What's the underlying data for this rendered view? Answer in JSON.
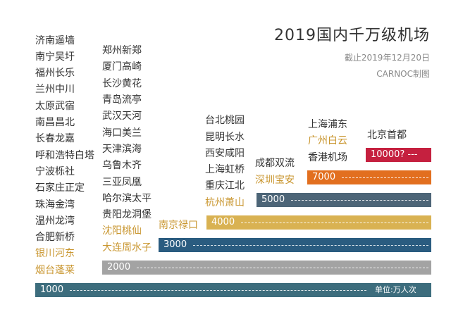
{
  "title": "2019国内千万级机场",
  "subtitle": "截止2019年12月20日",
  "credit": "CARNOC制图",
  "unit_label": "单位:万人次",
  "colors": {
    "text": "#333333",
    "new_member": "#c9962f",
    "tier_1000": "#3d6d7d",
    "tier_2000": "#a3a3a3",
    "tier_3000": "#2a5c80",
    "tier_4000": "#d9b252",
    "tier_5000": "#4d6577",
    "tier_7000": "#e26f1f",
    "tier_10000": "#c5203f"
  },
  "chart_data": {
    "type": "bar",
    "title": "2019国内千万级机场",
    "subtitle": "截止2019年12月20日",
    "unit": "万人次",
    "orientation": "stepped-horizontal",
    "tiers": [
      {
        "label": "1000",
        "threshold": 1000,
        "color": "#3d6d7d",
        "airports": [
          "济南遥墙",
          "南宁吴圩",
          "福州长乐",
          "兰州中川",
          "太原武宿",
          "南昌昌北",
          "长春龙嘉",
          "呼和浩特白塔",
          "宁波栎社",
          "石家庄正定",
          "珠海金湾",
          "温州龙湾",
          "合肥新桥",
          "银川河东",
          "烟台蓬莱"
        ],
        "new_members": [
          "银川河东",
          "烟台蓬莱"
        ]
      },
      {
        "label": "2000",
        "threshold": 2000,
        "color": "#a3a3a3",
        "airports": [
          "郑州新郑",
          "厦门高崎",
          "长沙黄花",
          "青岛流亭",
          "武汉天河",
          "海口美兰",
          "天津滨海",
          "乌鲁木齐",
          "三亚凤凰",
          "哈尔滨太平",
          "贵阳龙洞堡",
          "沈阳桃仙",
          "大连周水子"
        ],
        "new_members": [
          "沈阳桃仙",
          "大连周水子"
        ]
      },
      {
        "label": "3000",
        "threshold": 3000,
        "color": "#2a5c80",
        "airports": [
          "南京禄口"
        ],
        "new_members": [
          "南京禄口"
        ]
      },
      {
        "label": "4000",
        "threshold": 4000,
        "color": "#d9b252",
        "airports": [
          "台北桃园",
          "昆明长水",
          "西安咸阳",
          "上海虹桥",
          "重庆江北",
          "杭州萧山"
        ],
        "new_members": [
          "杭州萧山"
        ]
      },
      {
        "label": "5000",
        "threshold": 5000,
        "color": "#4d6577",
        "airports": [
          "成都双流",
          "深圳宝安"
        ],
        "new_members": [
          "深圳宝安"
        ]
      },
      {
        "label": "7000",
        "threshold": 7000,
        "color": "#e26f1f",
        "airports": [
          "上海浦东",
          "广州白云",
          "香港机场"
        ],
        "new_members": [
          "广州白云"
        ]
      },
      {
        "label": "10000? ---",
        "threshold": 10000,
        "color": "#c5203f",
        "airports": [
          "北京首都"
        ],
        "new_members": []
      }
    ]
  }
}
